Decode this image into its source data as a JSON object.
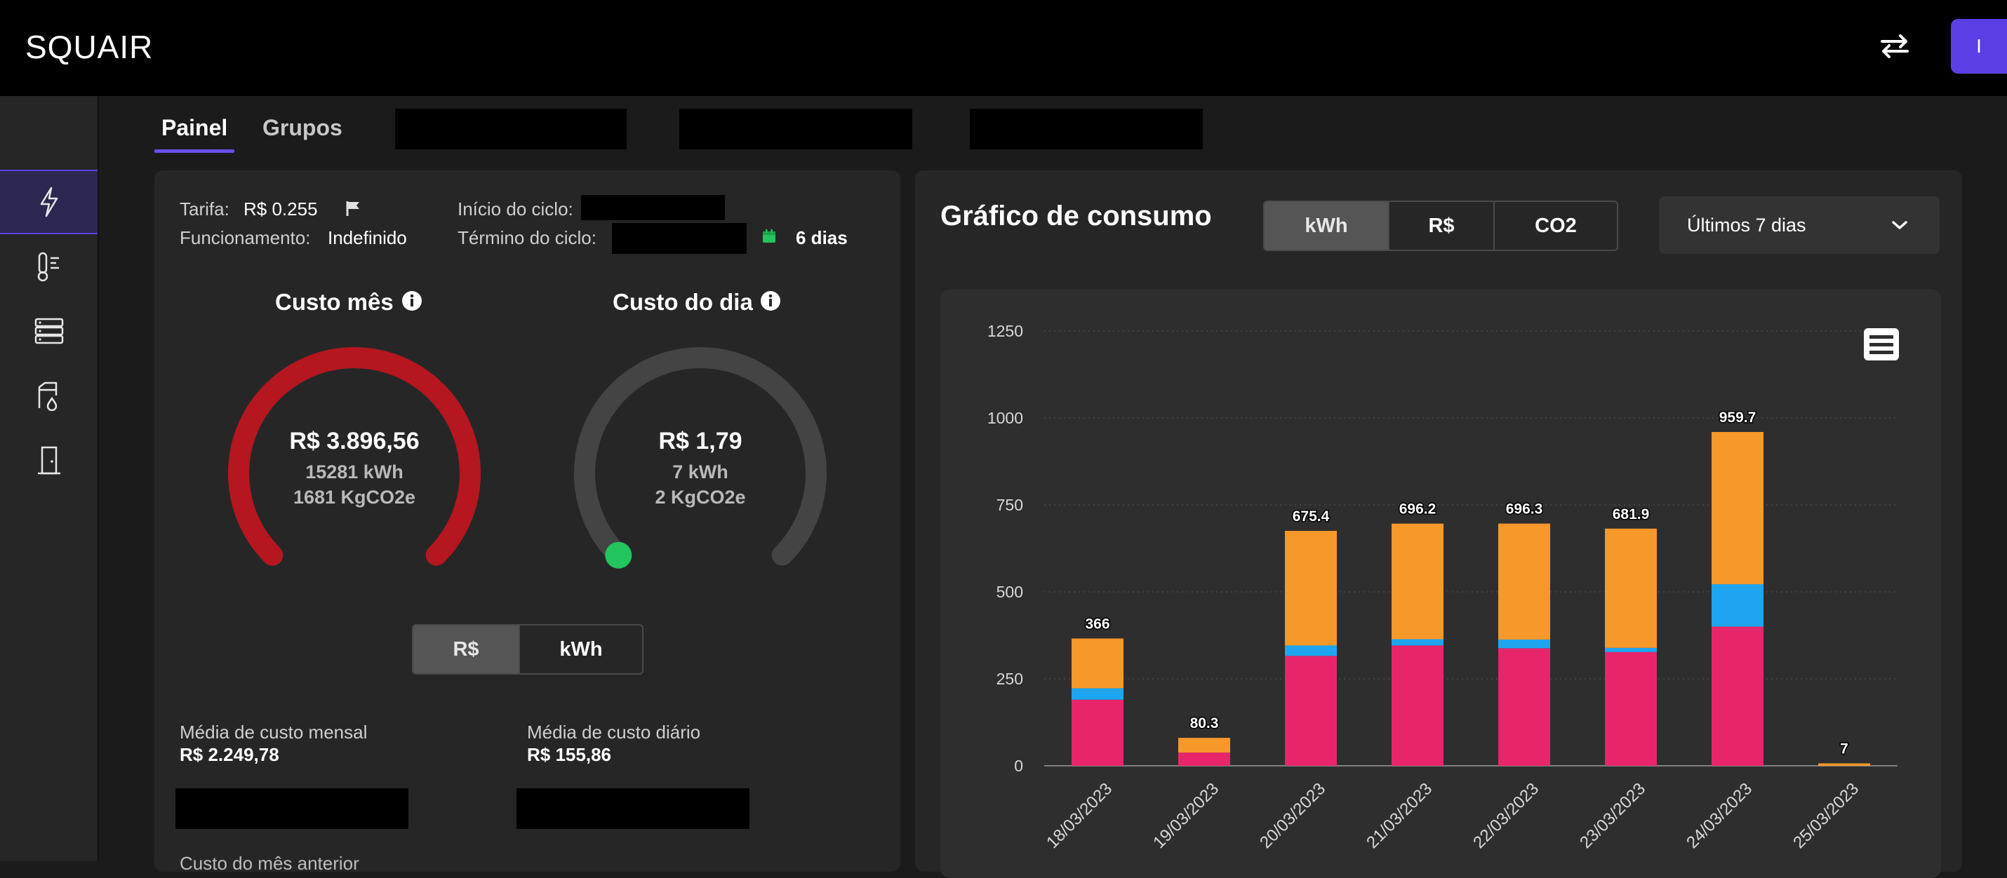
{
  "app": {
    "logo": "SQUAIR",
    "user_initial": "I"
  },
  "tabs": [
    {
      "label": "Painel",
      "active": true
    },
    {
      "label": "Grupos",
      "active": false
    }
  ],
  "sidebar": {
    "items": [
      {
        "icon": "lightning-icon",
        "active": true
      },
      {
        "icon": "thermometer-icon",
        "active": false
      },
      {
        "icon": "server-rack-icon",
        "active": false
      },
      {
        "icon": "water-tank-icon",
        "active": false
      },
      {
        "icon": "door-icon",
        "active": false
      }
    ]
  },
  "info": {
    "tarifa_label": "Tarifa:",
    "tarifa_value": "R$ 0.255",
    "funcionamento_label": "Funcionamento:",
    "funcionamento_value": "Indefinido",
    "inicio_label": "Início do ciclo:",
    "termino_label": "Término do ciclo:",
    "dias_value": "6 dias"
  },
  "gauges": {
    "month": {
      "title": "Custo mês",
      "cost": "R$ 3.896,56",
      "energy": "15281 kWh",
      "co2": "1681 KgCO2e",
      "fill": 1.0,
      "color": "#b5161f"
    },
    "day": {
      "title": "Custo do dia",
      "cost": "R$ 1,79",
      "energy": "7 kWh",
      "co2": "2 KgCO2e",
      "fill": 0.0,
      "color": "#22c55e"
    }
  },
  "unit_toggle": {
    "options": [
      "R$",
      "kWh"
    ],
    "selected": "R$"
  },
  "averages": {
    "monthly_label": "Média de custo mensal",
    "monthly_value": "R$ 2.249,78",
    "daily_label": "Média de custo diário",
    "daily_value": "R$ 155,86",
    "previous_label": "Custo do mês anterior"
  },
  "chart_header": {
    "title": "Gráfico de consumo",
    "unit_options": [
      "kWh",
      "R$",
      "CO2"
    ],
    "unit_selected": "kWh",
    "period_selected": "Últimos 7 dias"
  },
  "chart_data": {
    "type": "bar",
    "stacked": true,
    "categories": [
      "18/03/2023",
      "19/03/2023",
      "20/03/2023",
      "21/03/2023",
      "22/03/2023",
      "23/03/2023",
      "24/03/2023",
      "25/03/2023"
    ],
    "series": [
      {
        "values": [
          190,
          38,
          316,
          346,
          338,
          327,
          400,
          0
        ],
        "color": "#e8256b"
      },
      {
        "values": [
          33,
          0,
          30,
          18,
          25,
          12,
          122,
          0
        ],
        "color": "#1fa5f0"
      },
      {
        "values": [
          143,
          42.3,
          329.4,
          332.2,
          333.3,
          342.9,
          437.7,
          7
        ],
        "color": "#f7982a"
      }
    ],
    "totals": [
      366,
      80.3,
      675.4,
      696.2,
      696.3,
      681.9,
      959.7,
      7
    ],
    "total_labels": [
      "366",
      "80.3",
      "675.4",
      "696.2",
      "696.3",
      "681.9",
      "959.7",
      "7"
    ],
    "yticks": [
      0,
      250,
      500,
      750,
      1000,
      1250
    ],
    "ylim": [
      0,
      1250
    ],
    "grid": true
  }
}
